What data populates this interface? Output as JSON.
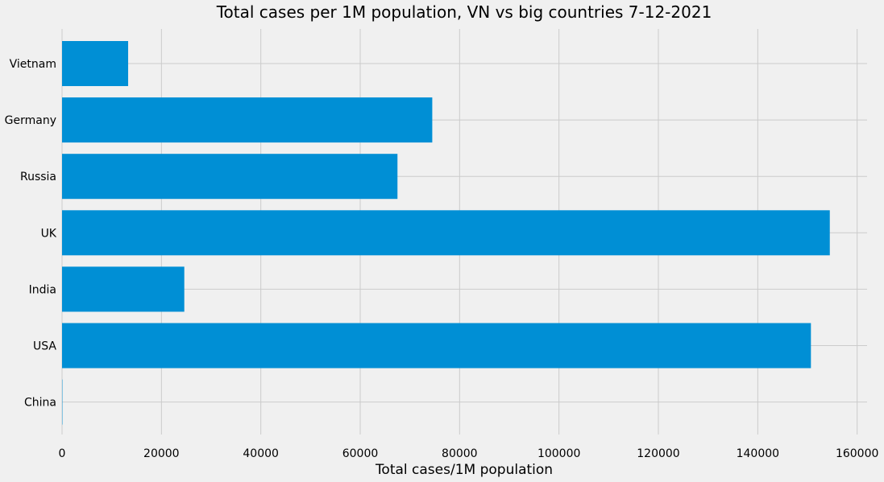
{
  "chart_data": {
    "type": "bar",
    "orientation": "horizontal",
    "title": "Total cases per 1M population, VN vs big countries 7-12-2021",
    "xlabel": "Total cases/1M population",
    "ylabel": "",
    "categories": [
      "Vietnam",
      "Germany",
      "Russia",
      "UK",
      "India",
      "USA",
      "China"
    ],
    "values": [
      13300,
      74500,
      67500,
      154500,
      24600,
      150700,
      70
    ],
    "xlim": [
      0,
      162000
    ],
    "xticks": [
      0,
      20000,
      40000,
      60000,
      80000,
      100000,
      120000,
      140000,
      160000
    ],
    "xtick_labels": [
      "0",
      "20000",
      "40000",
      "60000",
      "80000",
      "100000",
      "120000",
      "140000",
      "160000"
    ],
    "grid": true,
    "bar_color": "#008fd5",
    "background_color": "#f0f0f0",
    "grid_color": "#cbcbcb"
  }
}
